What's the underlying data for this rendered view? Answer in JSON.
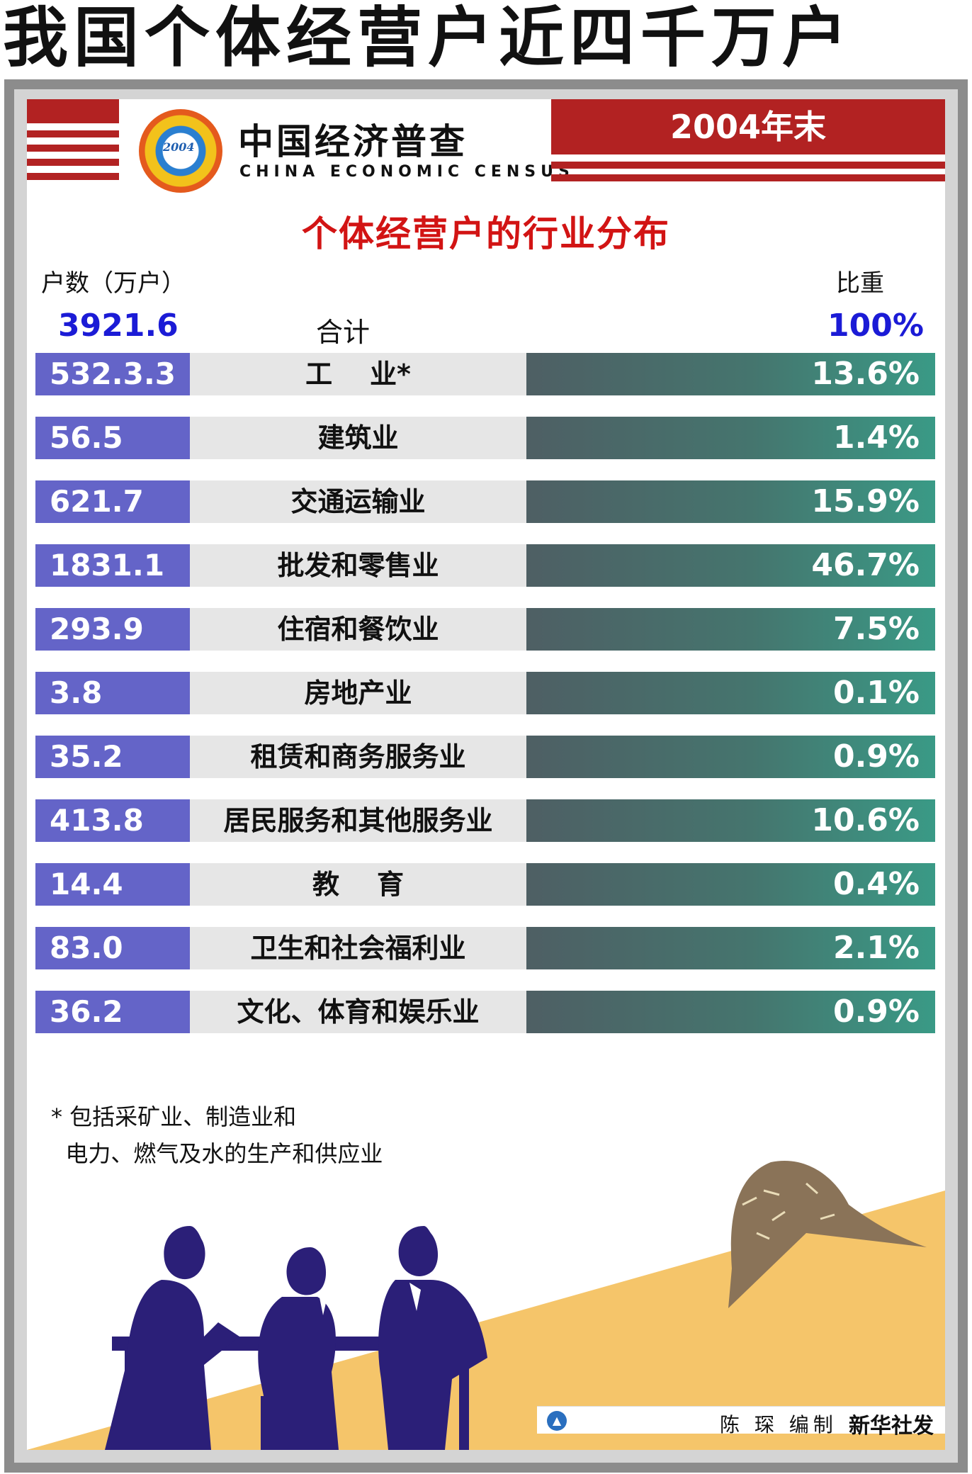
{
  "headline": "我国个体经营户近四千万户",
  "header": {
    "logo_year": "2004",
    "census_cn": "中国经济普查",
    "census_en": "CHINA ECONOMIC CENSUS",
    "date_label": "2004年末"
  },
  "subtitle": "个体经营户的行业分布",
  "columns": {
    "count_label": "户数（万户）",
    "share_label": "比重"
  },
  "total": {
    "count": "3921.6",
    "label": "合计",
    "share": "100%"
  },
  "rows": [
    {
      "count": "532.3.3",
      "industry": "工    业*",
      "share": "13.6%"
    },
    {
      "count": "56.5",
      "industry": "建筑业",
      "share": "1.4%"
    },
    {
      "count": "621.7",
      "industry": "交通运输业",
      "share": "15.9%"
    },
    {
      "count": "1831.1",
      "industry": "批发和零售业",
      "share": "46.7%"
    },
    {
      "count": "293.9",
      "industry": "住宿和餐饮业",
      "share": "7.5%"
    },
    {
      "count": "3.8",
      "industry": "房地产业",
      "share": "0.1%"
    },
    {
      "count": "35.2",
      "industry": "租赁和商务服务业",
      "share": "0.9%"
    },
    {
      "count": "413.8",
      "industry": "居民服务和其他服务业",
      "share": "10.6%"
    },
    {
      "count": "14.4",
      "industry": "教    育",
      "share": "0.4%"
    },
    {
      "count": "83.0",
      "industry": "卫生和社会福利业",
      "share": "2.1%"
    },
    {
      "count": "36.2",
      "industry": "文化、体育和娱乐业",
      "share": "0.9%"
    }
  ],
  "footnote": {
    "line1": "* 包括采矿业、制造业和",
    "line2": "  电力、燃气及水的生产和供应业"
  },
  "credit": {
    "author": "陈 琛 编制",
    "agency": "新华社发"
  },
  "colors": {
    "red": "#b22222",
    "title_red": "#d21414",
    "count_blue": "#6464c8",
    "total_blue": "#1b1bd6",
    "bar_green": "#3a9a86",
    "bar_gray": "#4e5f64",
    "silhouette": "#2b1f78",
    "sand": "#f5c56a"
  }
}
